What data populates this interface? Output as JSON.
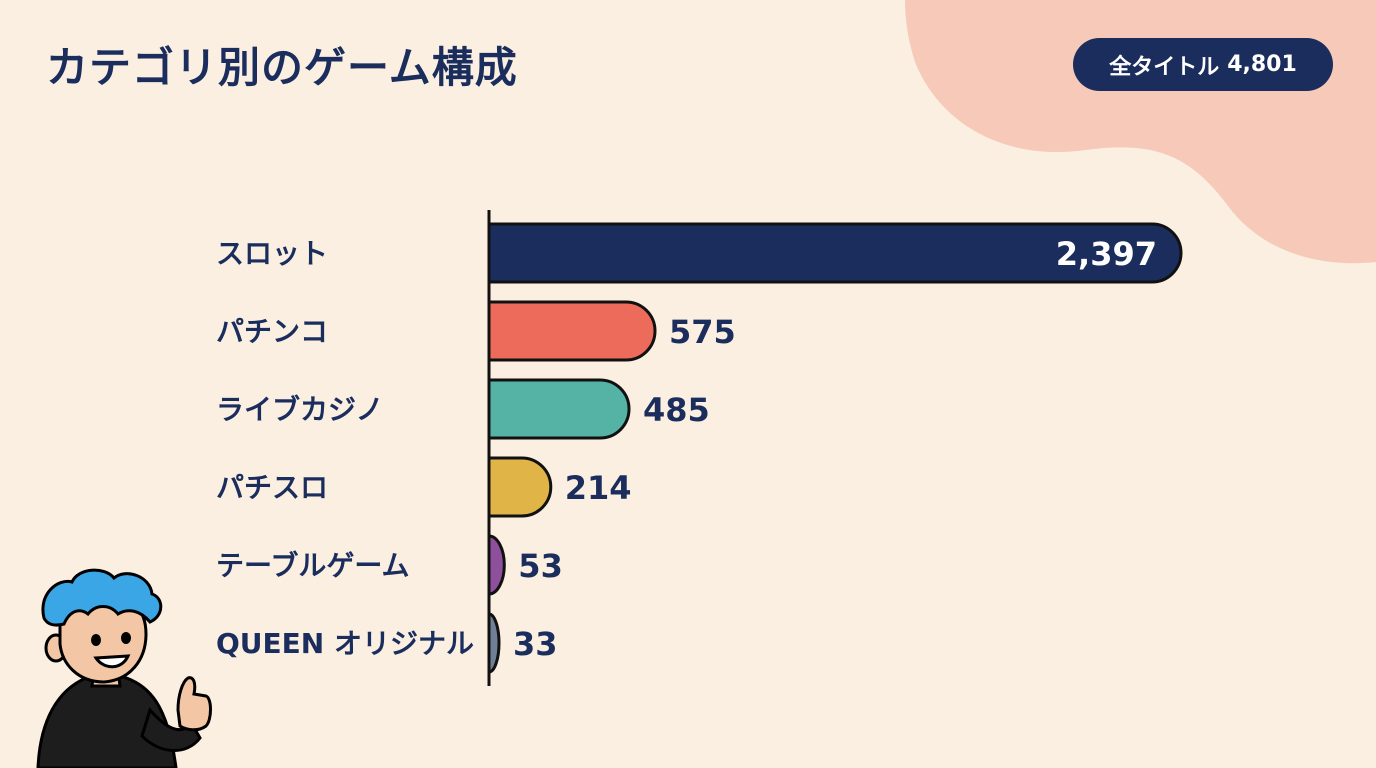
{
  "title": "カテゴリ別のゲーム構成",
  "badge": {
    "label": "全タイトル",
    "value": "4,801"
  },
  "colors": {
    "background": "#fbefe1",
    "accent_blob": "#f7c9b9",
    "navy": "#1b2d5c"
  },
  "chart_data": {
    "type": "bar",
    "orientation": "horizontal",
    "title": "",
    "xlabel": "",
    "ylabel": "",
    "categories": [
      "スロット",
      "パチンコ",
      "ライブカジノ",
      "パチスロ",
      "テーブルゲーム",
      "QUEEN オリジナル"
    ],
    "values": [
      2397,
      575,
      485,
      214,
      53,
      33
    ],
    "value_labels": [
      "2,397",
      "575",
      "485",
      "214",
      "53",
      "33"
    ],
    "colors": [
      "#1b2d5c",
      "#ec6b5a",
      "#55b3a6",
      "#e1b447",
      "#8e4f9d",
      "#6f7f95"
    ],
    "grid": false,
    "legend": "none"
  },
  "mascot": {
    "icon": "thumbs-up-boy-mascot-icon"
  }
}
